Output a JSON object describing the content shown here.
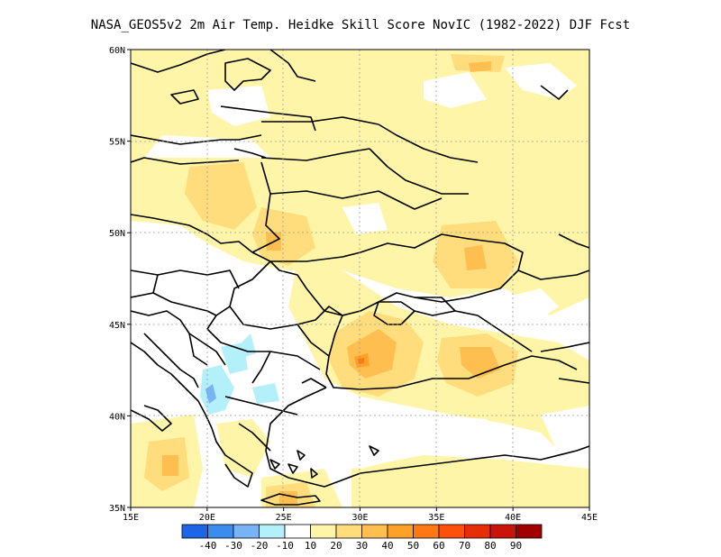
{
  "title": "NASA_GEOS5v2  2m Air Temp. Heidke Skill Score NovIC (1982-2022) DJF Fcst",
  "map": {
    "lon_range": [
      15,
      45
    ],
    "lat_range": [
      35,
      60
    ],
    "lon_ticks": [
      "15E",
      "20E",
      "25E",
      "30E",
      "35E",
      "40E",
      "45E"
    ],
    "lat_ticks": [
      "35N",
      "40N",
      "45N",
      "50N",
      "55N",
      "60N"
    ],
    "grid": true
  },
  "colorbar": {
    "colors": [
      "#1e64e6",
      "#3c8cf0",
      "#78b4f5",
      "#b4f0fa",
      "#ffffff",
      "#fff5a8",
      "#ffdc7c",
      "#ffbe50",
      "#ffa028",
      "#ff7814",
      "#ff500a",
      "#e62d0a",
      "#c8140a",
      "#a00000"
    ],
    "labels": [
      "-40",
      "-30",
      "-20",
      "-10",
      "10",
      "20",
      "30",
      "40",
      "50",
      "60",
      "70",
      "80",
      "90"
    ]
  }
}
